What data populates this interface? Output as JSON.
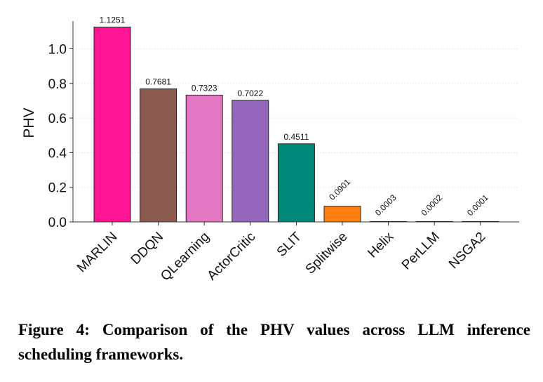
{
  "chart_data": {
    "type": "bar",
    "categories": [
      "MARLIN",
      "DDQN",
      "QLearning",
      "ActorCritic",
      "SLIT",
      "Splitwise",
      "Helix",
      "PerLLM",
      "NSGA2"
    ],
    "values": [
      1.1251,
      0.7681,
      0.7323,
      0.7022,
      0.4511,
      0.0901,
      0.0003,
      0.0002,
      0.0001
    ],
    "value_labels": [
      "1.1251",
      "0.7681",
      "0.7323",
      "0.7022",
      "0.4511",
      "0.0901",
      "0.0003",
      "0.0002",
      "0.0001"
    ],
    "colors": [
      "#ff1493",
      "#8b5a4e",
      "#e377c2",
      "#9467bd",
      "#00897b",
      "#ff7f0e",
      "#7f7f7f",
      "#7f7f7f",
      "#7f7f7f"
    ],
    "xlabel": "",
    "ylabel": "PHV",
    "ylim": [
      0,
      1.16
    ],
    "yticks": [
      0.0,
      0.2,
      0.4,
      0.6,
      0.8,
      1.0
    ],
    "ytick_labels": [
      "0.0",
      "0.2",
      "0.4",
      "0.6",
      "0.8",
      "1.0"
    ],
    "grid": true,
    "legend": "none"
  },
  "caption": "Figure 4: Comparison of the PHV values across LLM inference scheduling frameworks."
}
